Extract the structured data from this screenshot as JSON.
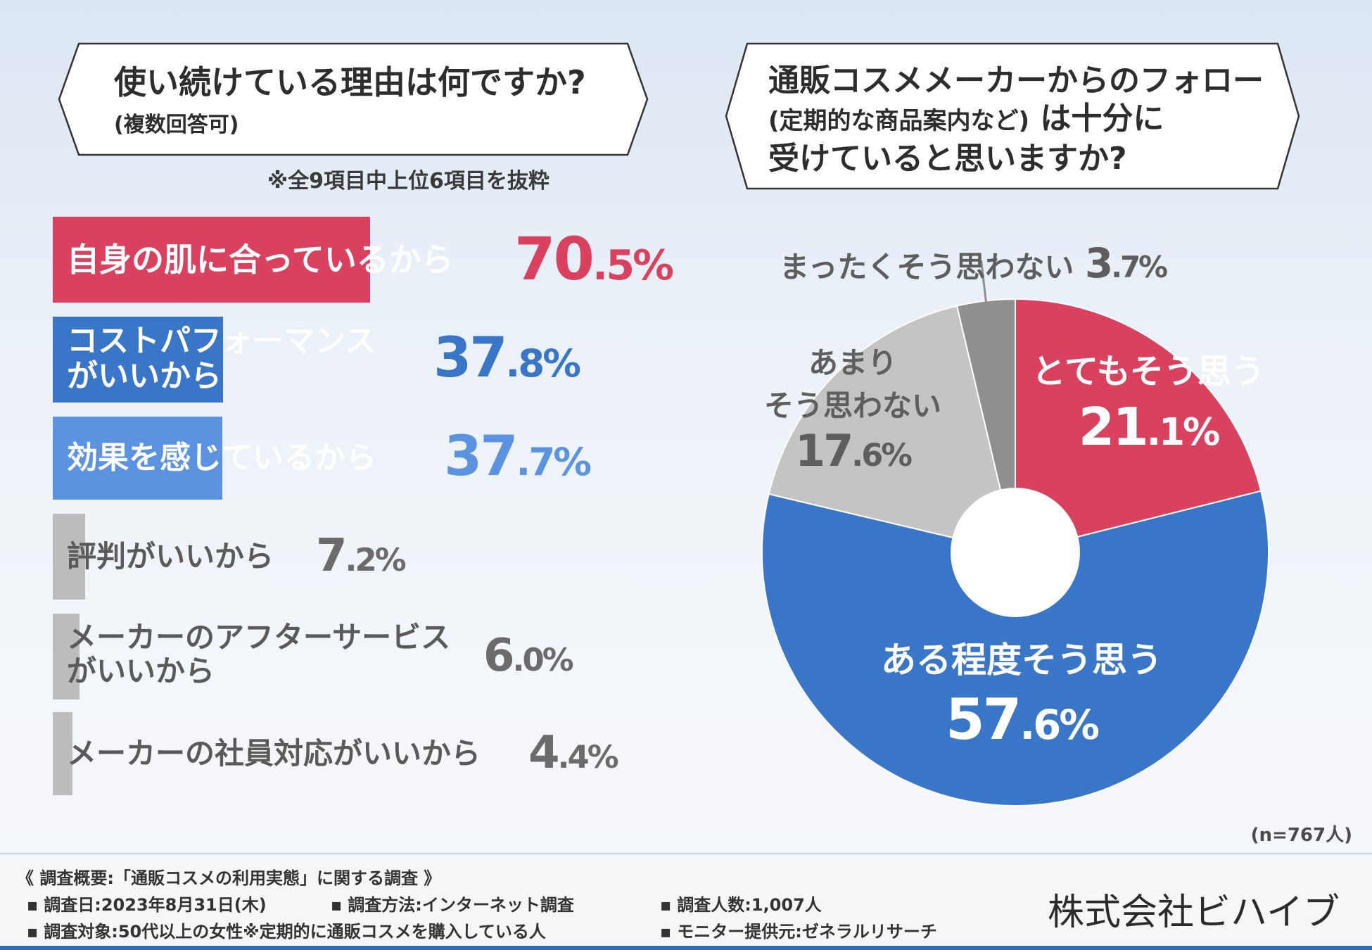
{
  "question_left": {
    "title": "使い続けている理由は何ですか?",
    "subtitle": "(複数回答可)"
  },
  "note_left": "※全9項目中上位6項目を抜粋",
  "question_right": {
    "line1": "通販コスメメーカーからのフォロー",
    "line2_small": "(定期的な商品案内など)",
    "line2_rest": "は十分に",
    "line3": "受けていると思いますか?"
  },
  "colors": {
    "red": "#d9415f",
    "blue": "#3a76c8",
    "lightblue": "#5b93e0",
    "gray": "#bcbcbc",
    "darkgray": "#8f8f8f",
    "lightgray": "#c4c4c4",
    "text_gray": "#6b6b6b"
  },
  "chart_data": [
    {
      "type": "bar",
      "orientation": "horizontal",
      "title": "使い続けている理由は何ですか?(複数回答可)",
      "unit": "%",
      "categories": [
        "自身の肌に合っているから",
        "コストパフォーマンスがいいから",
        "効果を感じているから",
        "評判がいいから",
        "メーカーのアフターサービスがいいから",
        "メーカーの社員対応がいいから"
      ],
      "values": [
        70.5,
        37.8,
        37.7,
        7.2,
        6.0,
        4.4
      ],
      "xlim": [
        0,
        100
      ]
    },
    {
      "type": "pie",
      "donut": true,
      "title": "通販コスメメーカーからのフォロー(定期的な商品案内など)は十分に受けていると思いますか?",
      "sample": "(n=767人)",
      "slices": [
        {
          "label": "とてもそう思う",
          "value": 21.1
        },
        {
          "label": "ある程度そう思う",
          "value": 57.6
        },
        {
          "label": "あまりそう思わない",
          "value": 17.6
        },
        {
          "label": "まったくそう思わない",
          "value": 3.7
        }
      ]
    }
  ],
  "bars": [
    {
      "label1": "自身の肌に合っているから",
      "label2": "",
      "int": "70",
      "dec": ".5%"
    },
    {
      "label1": "コストパフォーマンス",
      "label2": "がいいから",
      "int": "37",
      "dec": ".8%"
    },
    {
      "label1": "効果を感じているから",
      "label2": "",
      "int": "37",
      "dec": ".7%"
    },
    {
      "label1": "評判がいいから",
      "label2": "",
      "int": "7",
      "dec": ".2%"
    },
    {
      "label1": "メーカーのアフターサービス",
      "label2": "がいいから",
      "int": "6",
      "dec": ".0%"
    },
    {
      "label1": "メーカーの社員対応がいいから",
      "label2": "",
      "int": "4",
      "dec": ".4%"
    }
  ],
  "pie_labels": {
    "very": {
      "text": "とてもそう思う",
      "int": "21",
      "dec": ".1%"
    },
    "somewhat": {
      "text": "ある程度そう思う",
      "int": "57",
      "dec": ".6%"
    },
    "not_much_1": "あまり",
    "not_much_2": "そう思わない",
    "not_much_int": "17",
    "not_much_dec": ".6%",
    "not_at_all": "まったくそう思わない",
    "not_at_all_int": "3",
    "not_at_all_dec": ".7%"
  },
  "sample_note": "(n=767人)",
  "footer": {
    "title": "《 調査概要:「通販コスメの利用実態」に関する調査 》",
    "date": "調査日:2023年8月31日(木)",
    "method": "調査方法:インターネット調査",
    "count": "調査人数:1,007人",
    "target": "調査対象:50代以上の女性※定期的に通販コスメを購入している人",
    "monitor": "モニター提供元:ゼネラルリサーチ",
    "company": "株式会社ビハイブ"
  }
}
